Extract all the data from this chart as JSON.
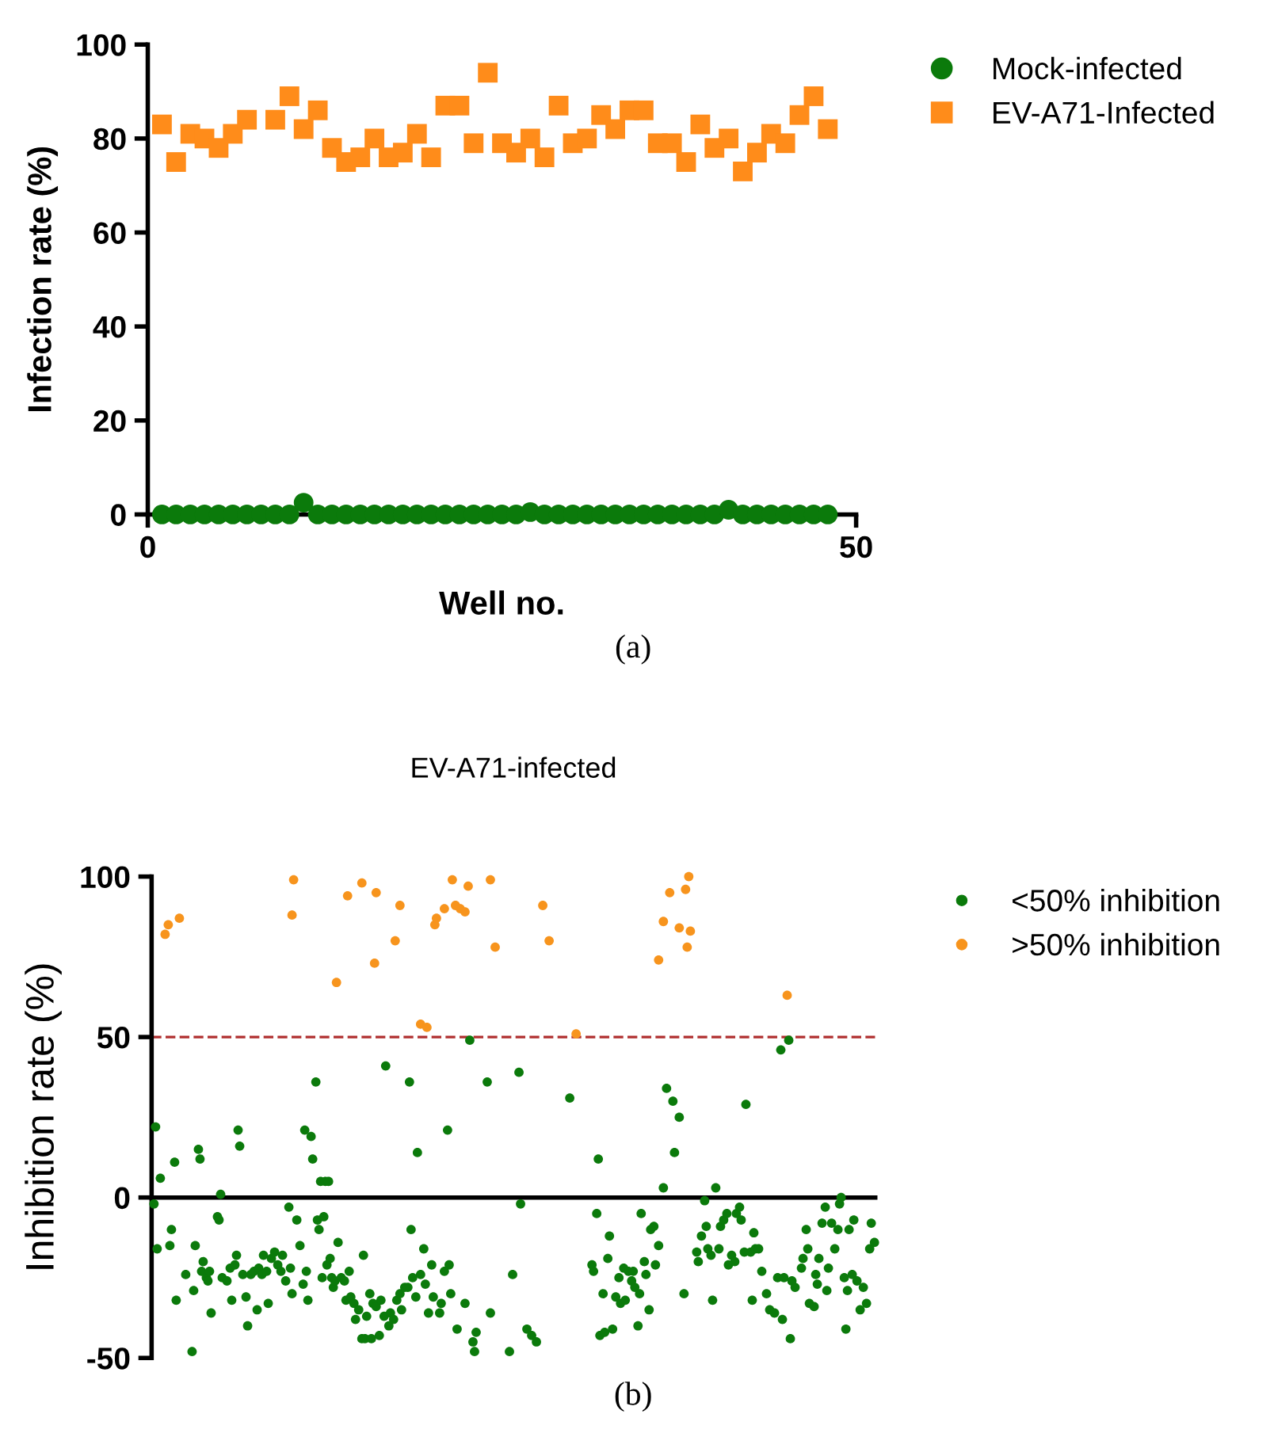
{
  "chart_data": [
    {
      "type": "scatter",
      "xlabel": "Well no.",
      "ylabel": "Infection rate (%)",
      "xlim": [
        0,
        50
      ],
      "xticks": [
        0,
        50
      ],
      "ylim": [
        0,
        100
      ],
      "yticks": [
        0,
        20,
        40,
        60,
        80,
        100
      ],
      "legend": "top right",
      "annotations": [
        "(a)"
      ],
      "series": [
        {
          "name": "Mock-infected",
          "color": "#0b7a0b",
          "marker": "circle",
          "x": [
            1,
            2,
            3,
            4,
            5,
            6,
            7,
            8,
            9,
            10,
            11,
            12,
            13,
            14,
            15,
            16,
            17,
            18,
            19,
            20,
            21,
            22,
            23,
            24,
            25,
            26,
            27,
            28,
            29,
            30,
            31,
            32,
            33,
            34,
            35,
            36,
            37,
            38,
            39,
            40,
            41,
            42,
            43,
            44,
            45,
            46,
            47,
            48
          ],
          "values": [
            0,
            0,
            0,
            0,
            0,
            0,
            0,
            0,
            0,
            0,
            2.5,
            0,
            0,
            0,
            0,
            0,
            0,
            0,
            0,
            0,
            0,
            0,
            0,
            0,
            0,
            0,
            0.5,
            0,
            0,
            0,
            0,
            0,
            0,
            0,
            0,
            0,
            0,
            0,
            0,
            0,
            1,
            0,
            0,
            0,
            0,
            0,
            0,
            0
          ]
        },
        {
          "name": "EV-A71-Infected",
          "color": "#ff8c1a",
          "marker": "square",
          "x": [
            1,
            2,
            3,
            4,
            5,
            6,
            7,
            9,
            10,
            11,
            12,
            13,
            14,
            15,
            16,
            17,
            18,
            19,
            20,
            21,
            22,
            23,
            24,
            25,
            26,
            27,
            28,
            29,
            30,
            31,
            32,
            33,
            34,
            35,
            36,
            37,
            38,
            39,
            40,
            41,
            42,
            43,
            44,
            45,
            46,
            47,
            48
          ],
          "values": [
            83,
            75,
            81,
            80,
            78,
            81,
            84,
            84,
            89,
            82,
            86,
            78,
            75,
            76,
            80,
            76,
            77,
            81,
            76,
            87,
            87,
            79,
            94,
            79,
            77,
            80,
            76,
            87,
            79,
            80,
            85,
            82,
            86,
            86,
            79,
            79,
            75,
            83,
            78,
            80,
            73,
            77,
            81,
            79,
            85,
            89,
            82
          ]
        }
      ]
    },
    {
      "type": "scatter",
      "title": "EV-A71-infected",
      "ylabel": "Inhibition rate (%)",
      "ylim": [
        -50,
        100
      ],
      "yticks": [
        -50,
        0,
        50,
        100
      ],
      "tick_labels": "y",
      "legend": "top right",
      "marker": "circle",
      "annotations": [
        "(b)"
      ],
      "ref_lines": [
        {
          "axis": "y",
          "value": 50,
          "color": "#b03030",
          "line_style": "dashed"
        }
      ],
      "categories": [
        null,
        null,
        null,
        null,
        null,
        null,
        null,
        null,
        null,
        null,
        null,
        null,
        null,
        null,
        null,
        null,
        null,
        null,
        null,
        null,
        null,
        null,
        null,
        null,
        null,
        null,
        null,
        null,
        null,
        null,
        null,
        null,
        null,
        null,
        null,
        null,
        null,
        null,
        null,
        null,
        null,
        null,
        null,
        null,
        null,
        null,
        null,
        null,
        null,
        null,
        null,
        null,
        null,
        null,
        null,
        null,
        null,
        null,
        null,
        null,
        null,
        null,
        null,
        null,
        null,
        null,
        null,
        null,
        null,
        null,
        null,
        null,
        null,
        null,
        null,
        null,
        null,
        null,
        null,
        null,
        null,
        null,
        null,
        null,
        null,
        null,
        null,
        null,
        null,
        null,
        null,
        null,
        null,
        null,
        null,
        null,
        null,
        null,
        null,
        null,
        null,
        null,
        null,
        null,
        null,
        null,
        null,
        null,
        null,
        null,
        null,
        null,
        null,
        null,
        null,
        null,
        null,
        null,
        null,
        null,
        null,
        null,
        null,
        null,
        null,
        null,
        null,
        null,
        null,
        null,
        null,
        null,
        null,
        null,
        null,
        null,
        null,
        null,
        null,
        null,
        null,
        null,
        null,
        null,
        null,
        null,
        null,
        null,
        null,
        null,
        null,
        null,
        null,
        null,
        null,
        null,
        null,
        null,
        null,
        null,
        null,
        null,
        null,
        null,
        null,
        null,
        null,
        null,
        null,
        null,
        null,
        null,
        null,
        null,
        null,
        null,
        null,
        null,
        null,
        null,
        null,
        null,
        null,
        null,
        null,
        null,
        null,
        null,
        null,
        null,
        null,
        null,
        null,
        null,
        null,
        null,
        null,
        null,
        null,
        null,
        null,
        null,
        null,
        null,
        null,
        null,
        null,
        null,
        null,
        null,
        null,
        null,
        null,
        null,
        null,
        null,
        null,
        null,
        null,
        null,
        null,
        null,
        null,
        null,
        null,
        null,
        null,
        null,
        null,
        null,
        null,
        null,
        null,
        null,
        null,
        null,
        null,
        null,
        null,
        null,
        null,
        null,
        null,
        null,
        null,
        null,
        null,
        null,
        null,
        null,
        null,
        null,
        null,
        null,
        null,
        null,
        null,
        null,
        null,
        null,
        null,
        null,
        null,
        null,
        null,
        null,
        null,
        null,
        null,
        null,
        null,
        null,
        null,
        null,
        null,
        null,
        null,
        null,
        null,
        null,
        null,
        null,
        null,
        null,
        null,
        null,
        null,
        null,
        null,
        null,
        null,
        null,
        null,
        null,
        null,
        null,
        null,
        null,
        null,
        null,
        null,
        null,
        null,
        null,
        null,
        null,
        null,
        null,
        null,
        null,
        null,
        null,
        null,
        null,
        null,
        null,
        null,
        null,
        null,
        null,
        null,
        null,
        null,
        null,
        null,
        null,
        null,
        null,
        null,
        null,
        null,
        null,
        null,
        null,
        null,
        null,
        null,
        null,
        null,
        null,
        null,
        null,
        null,
        null,
        null,
        null,
        null,
        null,
        null,
        null,
        null,
        null,
        null,
        null,
        null,
        null,
        null,
        null,
        null,
        null,
        null,
        null,
        null,
        null,
        null,
        null,
        null,
        null,
        null,
        null,
        null,
        null,
        null,
        null,
        null,
        null,
        null,
        null,
        null,
        null,
        null,
        null,
        null,
        null,
        null,
        null,
        null,
        null,
        null,
        null,
        null,
        null,
        null,
        null,
        null,
        null,
        null,
        null,
        null,
        null,
        null,
        null,
        null,
        null,
        null,
        null,
        null,
        null,
        null,
        null,
        null,
        null,
        null,
        null,
        null,
        null,
        null,
        null,
        null,
        null,
        null,
        null,
        null,
        null,
        null,
        null,
        null,
        null,
        null,
        null,
        null,
        null,
        null,
        null,
        null,
        null,
        null,
        null,
        null,
        null,
        null,
        null,
        null,
        null,
        null,
        null,
        null,
        null,
        null,
        null,
        null,
        null,
        null,
        null,
        null,
        null
      ],
      "series": [
        {
          "name": "<50% inhibition",
          "color": "#0b7a0b",
          "values": [
            null,
            -2,
            22,
            -16,
            null,
            6,
            null,
            null,
            null,
            null,
            null,
            -15,
            -10,
            null,
            11,
            -32,
            null,
            null,
            null,
            null,
            null,
            -24,
            null,
            null,
            null,
            -48,
            -29,
            -15,
            null,
            15,
            12,
            -23,
            -20,
            null,
            -25,
            -26,
            -23,
            -36,
            null,
            null,
            null,
            -6,
            -7,
            1,
            -25,
            null,
            null,
            -26,
            null,
            -22,
            -32,
            null,
            -21,
            -18,
            21,
            16,
            null,
            -24,
            null,
            -31,
            -40,
            null,
            -24,
            null,
            -23,
            null,
            -35,
            -22,
            null,
            -24,
            -18,
            null,
            -23,
            -33,
            null,
            -19,
            null,
            -17,
            null,
            -21,
            null,
            -23,
            -18,
            null,
            -26,
            null,
            -3,
            -22,
            -30,
            null,
            null,
            -7,
            null,
            -15,
            null,
            -27,
            21,
            -23,
            -32,
            null,
            19,
            12,
            null,
            36,
            -7,
            -10,
            5,
            -25,
            -6,
            5,
            -21,
            5,
            -19,
            -25,
            -28,
            -26,
            null,
            -14,
            null,
            -25,
            null,
            -26,
            -32,
            null,
            -23,
            -31,
            null,
            -33,
            -38,
            null,
            -35,
            null,
            -44,
            -18,
            -44,
            -37,
            null,
            -30,
            -44,
            -33,
            null,
            -34,
            null,
            -43,
            -32,
            null,
            -37,
            41,
            null,
            -40,
            -36,
            null,
            -38,
            null,
            -32,
            null,
            -30,
            -35,
            null,
            -28,
            null,
            -28,
            36,
            -10,
            -25,
            null,
            -31,
            14,
            null,
            -24,
            null,
            -16,
            -27,
            null,
            -36,
            null,
            -21,
            -31,
            null,
            null,
            null,
            -36,
            -33,
            null,
            -23,
            null,
            21,
            -21,
            -30,
            null,
            null,
            null,
            -41,
            null,
            null,
            null,
            null,
            -33,
            null,
            null,
            49,
            null,
            -45,
            -48,
            -42,
            null,
            null,
            null,
            null,
            null,
            null,
            36,
            null,
            -36,
            null,
            null,
            null,
            null,
            null,
            null,
            null,
            null,
            null,
            null,
            null,
            -48,
            null,
            -24,
            null,
            null,
            null,
            39,
            -2,
            null,
            null,
            null,
            -41,
            null,
            null,
            -43,
            null,
            null,
            -45,
            null,
            null,
            null,
            null,
            null,
            null,
            null,
            null,
            null,
            null,
            null,
            null,
            null,
            null,
            null,
            null,
            null,
            null,
            null,
            null,
            31,
            null,
            null,
            null,
            null,
            null,
            null,
            null,
            null,
            null,
            null,
            null,
            null,
            null,
            -21,
            -23,
            null,
            -5,
            12,
            -43,
            null,
            -30,
            -42,
            null,
            -19,
            -12,
            null,
            -41,
            null,
            -31,
            null,
            -25,
            -33,
            null,
            -22,
            -32,
            null,
            -23,
            null,
            -26,
            -23,
            -28,
            null,
            -40,
            -30,
            -5,
            null,
            -20,
            -24,
            null,
            -35,
            -10,
            null,
            -9,
            -21,
            null,
            -15,
            null,
            null,
            3,
            null,
            34,
            null,
            null,
            null,
            30,
            14,
            null,
            null,
            25,
            null,
            null,
            -30,
            null,
            null,
            null,
            null,
            null,
            null,
            null,
            -17,
            -20,
            null,
            -12,
            null,
            -1,
            -9,
            -16,
            null,
            -18,
            -32,
            null,
            3,
            null,
            -16,
            -9,
            null,
            -7,
            null,
            -5,
            -21,
            null,
            -18,
            null,
            -20,
            -5,
            null,
            -3,
            -7,
            null,
            -17,
            29,
            null,
            null,
            -17,
            -32,
            -11,
            -16,
            null,
            -16,
            null,
            -23,
            null,
            null,
            -30,
            null,
            -35,
            null,
            null,
            -36,
            null,
            -25,
            null,
            46,
            -38,
            -25,
            null,
            null,
            49,
            -44,
            -26,
            null,
            -28,
            null,
            null,
            null,
            -22,
            -19,
            null,
            -10,
            -16,
            -33,
            null,
            null,
            -34,
            -24,
            -27,
            -19,
            null,
            -8,
            null,
            -3,
            -29,
            -22,
            null,
            -8,
            null,
            -16,
            null,
            -10,
            -2,
            0,
            null,
            -25,
            -41,
            -29,
            -10,
            null,
            -24,
            -7,
            null,
            -26,
            null,
            -35,
            null,
            -28,
            null,
            -33,
            null,
            -16,
            -8,
            null,
            -14
          ]
        },
        {
          "name": ">50% inhibition",
          "color": "#f7941d",
          "values": [
            null,
            null,
            null,
            null,
            null,
            null,
            null,
            null,
            82,
            null,
            85,
            null,
            null,
            null,
            null,
            null,
            null,
            87,
            null,
            null,
            null,
            null,
            null,
            null,
            null,
            null,
            null,
            null,
            null,
            null,
            null,
            null,
            null,
            null,
            null,
            null,
            null,
            null,
            null,
            null,
            null,
            null,
            null,
            null,
            null,
            null,
            null,
            null,
            null,
            null,
            null,
            null,
            null,
            null,
            null,
            null,
            null,
            null,
            null,
            null,
            null,
            null,
            null,
            null,
            null,
            null,
            null,
            null,
            null,
            null,
            null,
            null,
            null,
            null,
            null,
            null,
            null,
            null,
            null,
            null,
            null,
            null,
            null,
            null,
            null,
            null,
            null,
            null,
            88,
            99,
            null,
            null,
            null,
            null,
            null,
            null,
            null,
            null,
            null,
            null,
            null,
            null,
            null,
            null,
            null,
            null,
            null,
            null,
            null,
            null,
            null,
            null,
            null,
            null,
            null,
            null,
            67,
            null,
            null,
            null,
            null,
            null,
            null,
            94,
            null,
            null,
            null,
            null,
            null,
            null,
            null,
            null,
            98,
            null,
            null,
            null,
            null,
            null,
            null,
            null,
            73,
            95,
            null,
            null,
            null,
            null,
            null,
            null,
            null,
            null,
            null,
            null,
            null,
            80,
            null,
            null,
            91,
            null,
            null,
            null,
            null,
            null,
            null,
            null,
            null,
            null,
            null,
            null,
            null,
            54,
            null,
            null,
            null,
            53,
            null,
            null,
            null,
            null,
            85,
            87,
            null,
            null,
            null,
            null,
            90,
            null,
            null,
            null,
            null,
            99,
            null,
            91,
            null,
            null,
            90,
            null,
            null,
            89,
            null,
            97,
            null,
            null,
            null,
            null,
            null,
            null,
            null,
            null,
            null,
            null,
            null,
            null,
            null,
            99,
            null,
            null,
            78,
            null,
            null,
            null,
            null,
            null,
            null,
            null,
            null,
            null,
            null,
            null,
            null,
            null,
            null,
            null,
            null,
            null,
            null,
            null,
            null,
            null,
            null,
            null,
            null,
            null,
            null,
            null,
            null,
            null,
            91,
            null,
            null,
            null,
            80,
            null,
            null,
            null,
            null,
            null,
            null,
            null,
            null,
            null,
            null,
            null,
            null,
            null,
            null,
            null,
            null,
            51,
            null,
            null,
            null,
            null,
            null,
            null,
            null,
            null,
            null,
            null,
            null,
            null,
            null,
            null,
            null,
            null,
            null,
            null,
            null,
            null,
            null,
            null,
            null,
            null,
            null,
            null,
            null,
            null,
            null,
            null,
            null,
            null,
            null,
            null,
            null,
            null,
            null,
            null,
            null,
            null,
            null,
            null,
            null,
            null,
            null,
            null,
            null,
            null,
            null,
            null,
            null,
            74,
            null,
            null,
            86,
            null,
            null,
            null,
            95,
            null,
            null,
            null,
            null,
            null,
            84,
            null,
            null,
            null,
            96,
            78,
            100,
            83,
            null,
            null,
            null,
            null,
            null,
            null,
            null,
            null,
            null,
            null,
            null,
            null,
            null,
            null,
            null,
            null,
            null,
            null,
            null,
            null,
            null,
            null,
            null,
            null,
            null,
            null,
            null,
            null,
            null,
            null,
            null,
            null,
            null,
            null,
            null,
            null,
            null,
            null,
            null,
            null,
            null,
            null,
            null,
            null,
            null,
            null,
            null,
            null,
            null,
            null,
            null,
            null,
            null,
            null,
            null,
            null,
            null,
            null,
            null,
            null,
            63,
            null,
            null,
            null,
            null,
            null,
            null,
            null,
            null,
            null,
            null,
            null,
            null,
            null,
            null,
            null,
            null,
            null,
            null,
            null,
            null,
            null,
            null,
            null,
            null,
            null,
            null,
            null,
            null,
            null,
            null,
            null,
            null,
            null,
            null,
            null,
            null,
            null,
            null,
            null,
            null,
            null,
            null,
            null,
            null,
            null,
            null,
            null,
            null,
            null,
            null,
            null,
            null,
            null,
            null,
            null
          ]
        }
      ]
    }
  ]
}
